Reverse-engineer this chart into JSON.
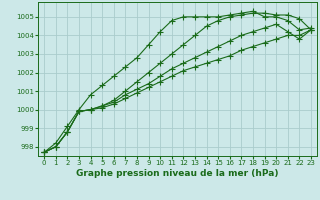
{
  "xlabel": "Graphe pression niveau de la mer (hPa)",
  "background_color": "#cce8e8",
  "grid_color": "#aacccc",
  "line_color": "#1a6b1a",
  "xlim": [
    -0.5,
    23.5
  ],
  "ylim": [
    997.5,
    1005.8
  ],
  "yticks": [
    998,
    999,
    1000,
    1001,
    1002,
    1003,
    1004,
    1005
  ],
  "xticks": [
    0,
    1,
    2,
    3,
    4,
    5,
    6,
    7,
    8,
    9,
    10,
    11,
    12,
    13,
    14,
    15,
    16,
    17,
    18,
    19,
    20,
    21,
    22,
    23
  ],
  "series": [
    [
      997.7,
      998.0,
      998.8,
      999.9,
      1000.0,
      1000.2,
      1000.5,
      1001.0,
      1001.5,
      1002.0,
      1002.5,
      1003.0,
      1003.5,
      1004.0,
      1004.5,
      1004.8,
      1005.0,
      1005.1,
      1005.2,
      1005.2,
      1005.1,
      1005.1,
      1004.9,
      1004.3
    ],
    [
      997.7,
      998.2,
      999.1,
      1000.0,
      1000.8,
      1001.3,
      1001.8,
      1002.3,
      1002.8,
      1003.5,
      1004.2,
      1004.8,
      1005.0,
      1005.0,
      1005.0,
      1005.0,
      1005.1,
      1005.2,
      1005.3,
      1005.0,
      1005.0,
      1004.8,
      1004.3,
      1004.4
    ],
    [
      997.7,
      998.0,
      998.8,
      999.9,
      1000.0,
      1000.2,
      1000.4,
      1000.8,
      1001.1,
      1001.4,
      1001.8,
      1002.2,
      1002.5,
      1002.8,
      1003.1,
      1003.4,
      1003.7,
      1004.0,
      1004.2,
      1004.4,
      1004.6,
      1004.2,
      1003.8,
      1004.3
    ],
    [
      997.7,
      998.0,
      998.8,
      999.9,
      1000.0,
      1000.1,
      1000.3,
      1000.6,
      1000.9,
      1001.2,
      1001.5,
      1001.8,
      1002.1,
      1002.3,
      1002.5,
      1002.7,
      1002.9,
      1003.2,
      1003.4,
      1003.6,
      1003.8,
      1004.0,
      1004.0,
      1004.3
    ]
  ],
  "marker": "+",
  "markersize": 4,
  "linewidth": 0.8,
  "xlabel_fontsize": 6.5,
  "tick_fontsize": 5.0
}
